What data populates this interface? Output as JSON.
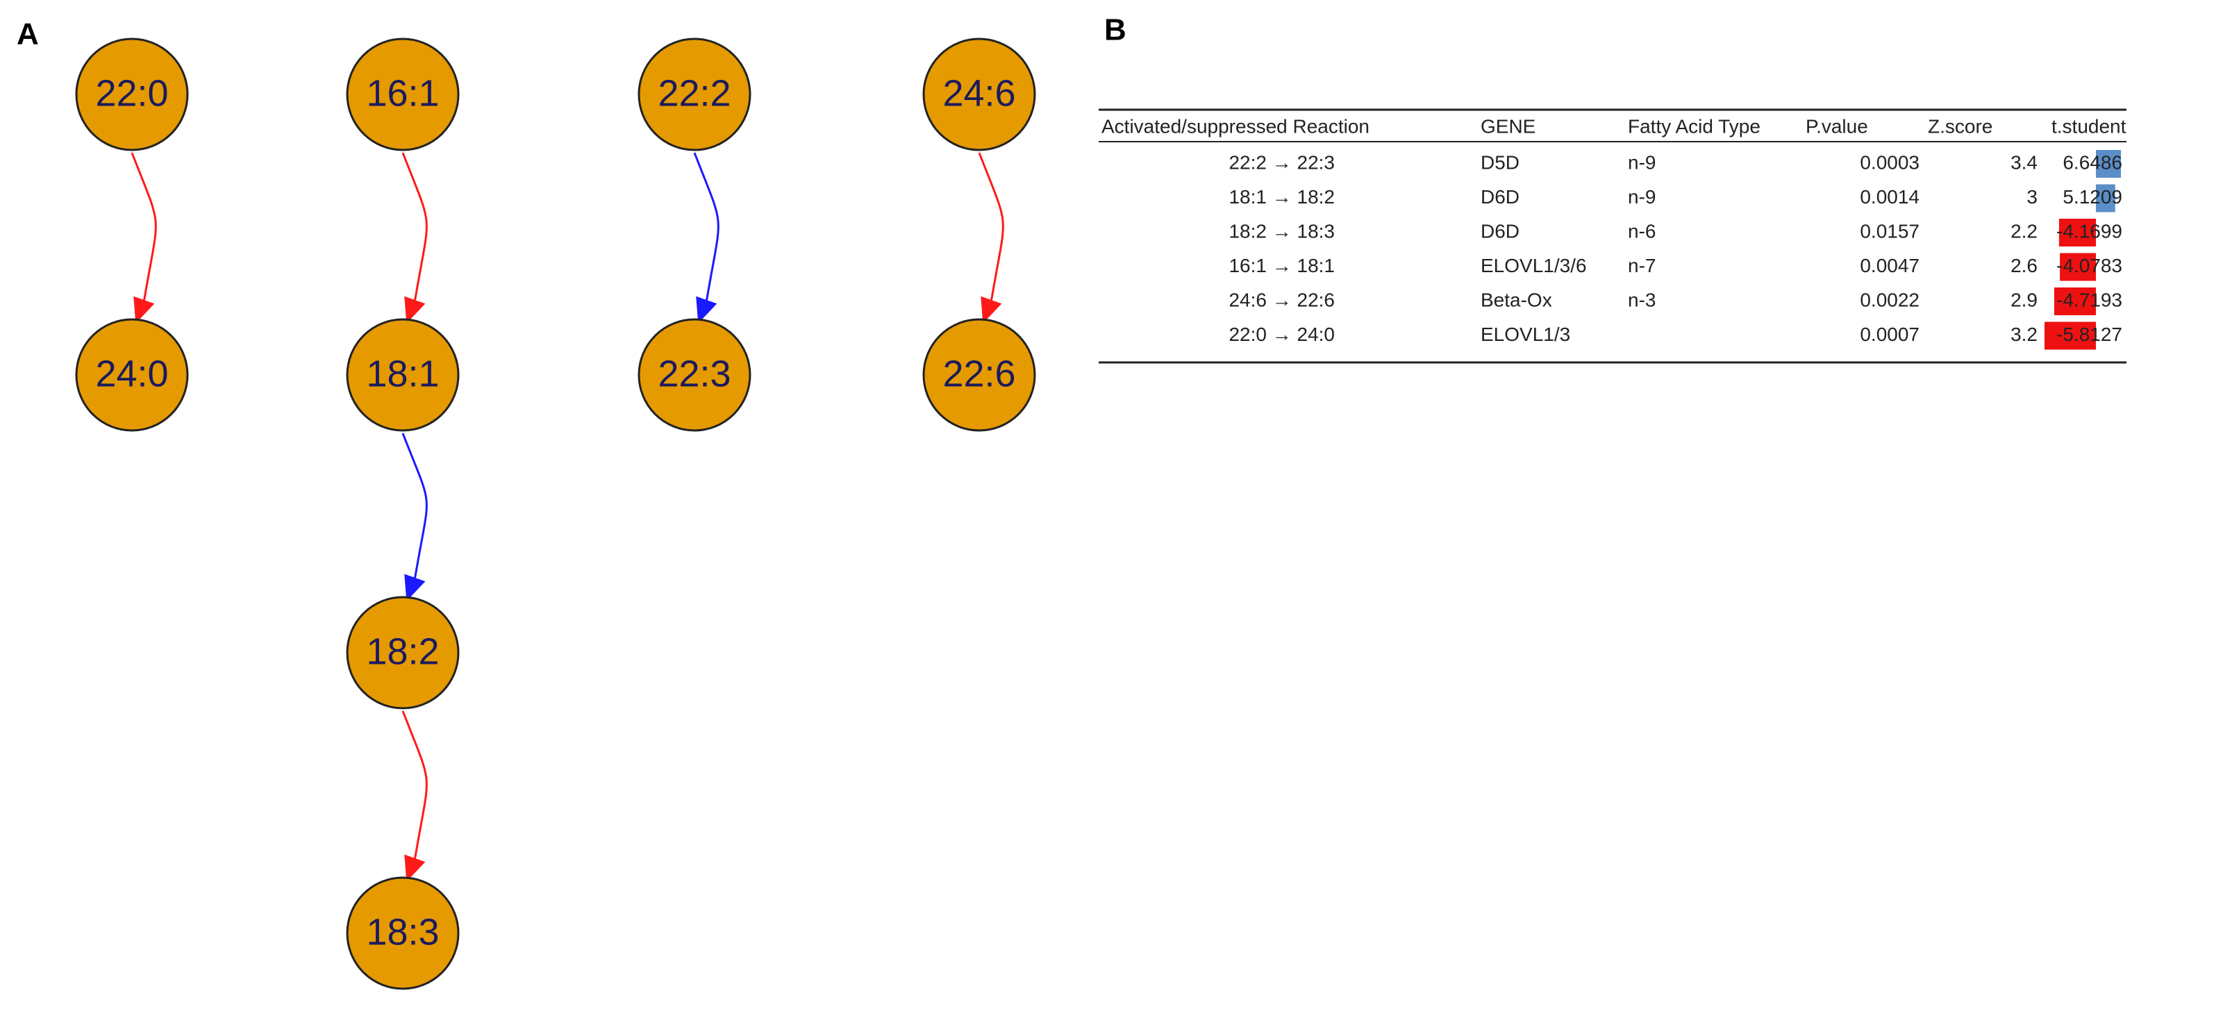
{
  "panel_a": {
    "label": "A",
    "pathways": [
      {
        "nodes": [
          "22:0",
          "24:0"
        ],
        "edge_colors": [
          "#ff1a1a"
        ]
      },
      {
        "nodes": [
          "16:1",
          "18:1",
          "18:2",
          "18:3"
        ],
        "edge_colors": [
          "#ff1a1a",
          "#1a1aff",
          "#ff1a1a"
        ]
      },
      {
        "nodes": [
          "22:2",
          "22:3"
        ],
        "edge_colors": [
          "#1a1aff"
        ]
      },
      {
        "nodes": [
          "24:6",
          "22:6"
        ],
        "edge_colors": [
          "#ff1a1a"
        ]
      }
    ],
    "node_color": "#e59a00"
  },
  "panel_b": {
    "label": "B",
    "table": {
      "header": [
        "Activated/suppressed Reaction",
        "GENE",
        "Fatty Acid Type",
        "P.value",
        "Z.score",
        "t.student"
      ],
      "rows": [
        [
          "22:2 →  22:3",
          "D5D",
          "n-9",
          0.0003,
          3.4,
          6.6486
        ],
        [
          "18:1 →  18:2",
          "D6D",
          "n-9",
          0.0014,
          3,
          5.1209
        ],
        [
          "18:2 →  18:3",
          "D6D",
          "n-6",
          0.0157,
          2.2,
          -4.1699
        ],
        [
          "16:1 →  18:1",
          "ELOVL1/3/6",
          "n-7",
          0.0047,
          2.6,
          -4.0783
        ],
        [
          "24:6 →  22:6",
          "Beta-Ox",
          "n-3",
          0.0022,
          2.9,
          -4.7193
        ],
        [
          "22:0 →  24:0",
          "ELOVL1/3",
          null,
          0.0007,
          3.2,
          -5.8127
        ]
      ],
      "positive_bar_color": "#5b8ec9",
      "negative_bar_color": "#ee1111"
    }
  }
}
